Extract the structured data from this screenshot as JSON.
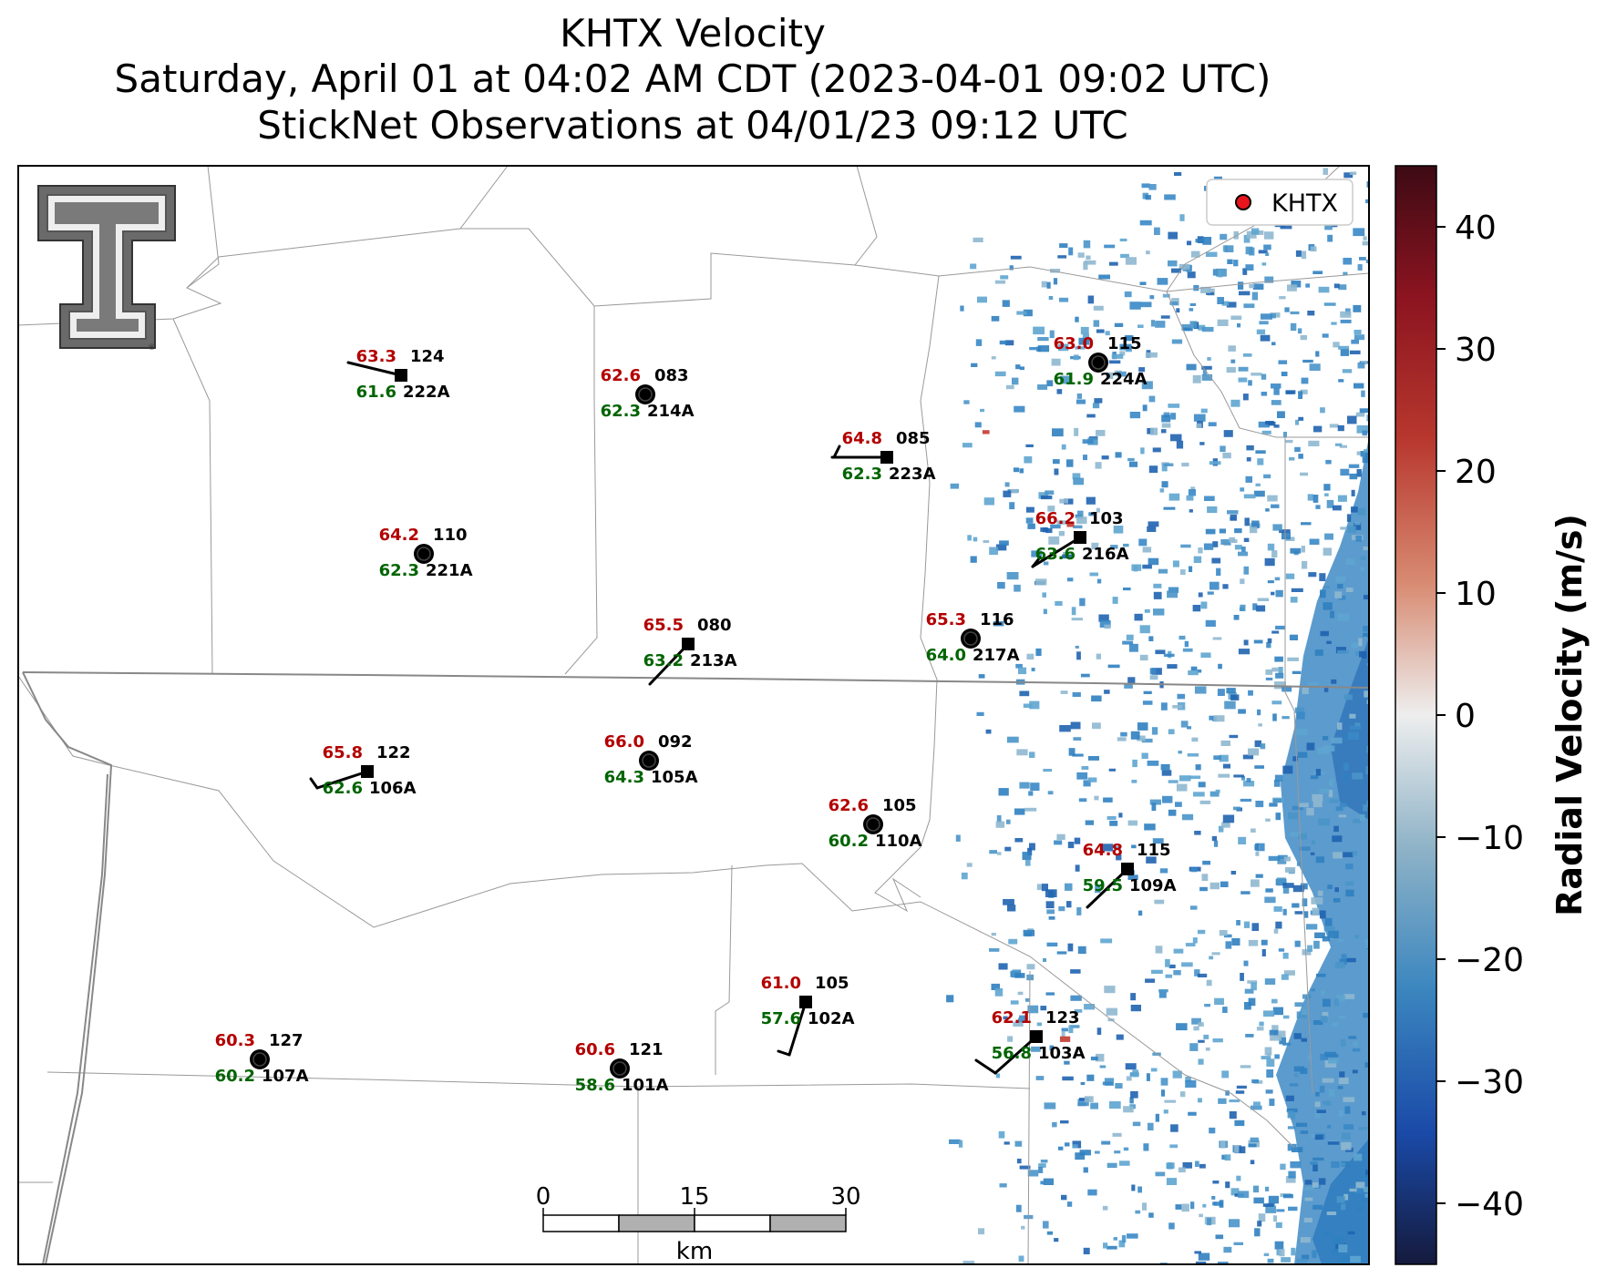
{
  "title": {
    "line1": "KHTX Velocity",
    "line2": "Saturday, April 01 at 04:02 AM CDT (2023-04-01 09:02 UTC)",
    "line3": "StickNet Observations at 04/01/23 09:12 UTC"
  },
  "legend": {
    "label": "KHTX",
    "marker_color": "#e8141c",
    "position": "top-right"
  },
  "colorbar": {
    "label": "Radial Velocity (m/s)",
    "range": [
      -45,
      45
    ],
    "ticks": [
      40,
      30,
      20,
      10,
      0,
      -10,
      -20,
      -30,
      -40
    ],
    "tick_labels": [
      "40",
      "30",
      "20",
      "10",
      "0",
      "−10",
      "−20",
      "−30",
      "−40"
    ]
  },
  "scalebar": {
    "ticks": [
      "0",
      "15",
      "30"
    ],
    "unit": "km"
  },
  "colors": {
    "temperature": "#b30000",
    "dewpoint": "#006400",
    "station_id": "#000000"
  },
  "stations": [
    {
      "id": "222A",
      "temp": "63.3",
      "dew": "61.6",
      "code": "124"
    },
    {
      "id": "214A",
      "temp": "62.6",
      "dew": "62.3",
      "code": "083"
    },
    {
      "id": "224A",
      "temp": "63.0",
      "dew": "61.9",
      "code": "115"
    },
    {
      "id": "223A",
      "temp": "64.8",
      "dew": "62.3",
      "code": "085"
    },
    {
      "id": "221A",
      "temp": "64.2",
      "dew": "62.3",
      "code": "110"
    },
    {
      "id": "216A",
      "temp": "66.2",
      "dew": "63.6",
      "code": "103"
    },
    {
      "id": "213A",
      "temp": "65.5",
      "dew": "63.2",
      "code": "080"
    },
    {
      "id": "217A",
      "temp": "65.3",
      "dew": "64.0",
      "code": "116"
    },
    {
      "id": "106A",
      "temp": "65.8",
      "dew": "62.6",
      "code": "122"
    },
    {
      "id": "105A",
      "temp": "66.0",
      "dew": "64.3",
      "code": "092"
    },
    {
      "id": "110A",
      "temp": "62.6",
      "dew": "60.2",
      "code": "105"
    },
    {
      "id": "109A",
      "temp": "64.8",
      "dew": "59.5",
      "code": "115"
    },
    {
      "id": "102A",
      "temp": "61.0",
      "dew": "57.6",
      "code": "105"
    },
    {
      "id": "103A",
      "temp": "62.1",
      "dew": "56.8",
      "code": "123"
    },
    {
      "id": "107A",
      "temp": "60.3",
      "dew": "60.2",
      "code": "127"
    },
    {
      "id": "101A",
      "temp": "60.6",
      "dew": "58.6",
      "code": "121"
    }
  ]
}
